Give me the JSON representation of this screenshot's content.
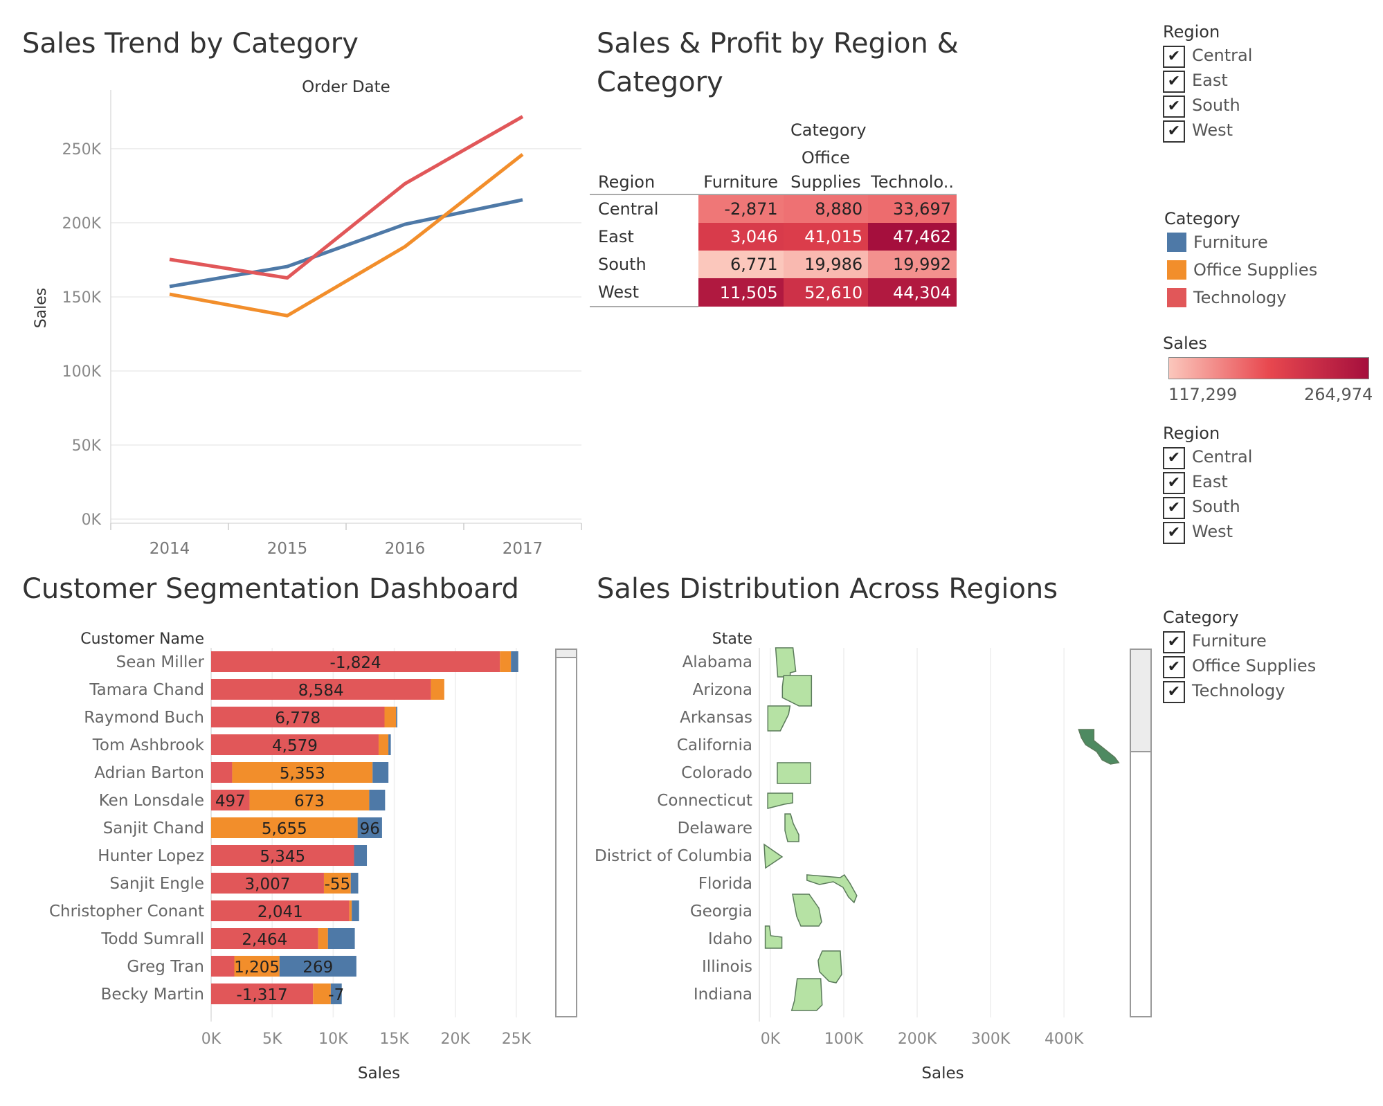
{
  "colors": {
    "furniture": "#4e79a7",
    "office_supplies": "#f28e2b",
    "technology": "#e15759",
    "map_light": "#b6e2a4",
    "map_dark": "#4e8a61",
    "map_stroke": "#5a7a5a"
  },
  "line_panel": {
    "title": "Sales Trend by Category",
    "top_header": "Order Date"
  },
  "heat_panel": {
    "title_line1": "Sales & Profit by Region &",
    "title_line2": "Category",
    "category_header": "Category",
    "row_header": "Region",
    "col_labels": [
      [
        "",
        "Furniture"
      ],
      [
        "Office",
        "Supplies"
      ],
      [
        "",
        "Technolo.."
      ]
    ],
    "rows": [
      "Central",
      "East",
      "South",
      "West"
    ]
  },
  "bar_panel": {
    "title": "Customer Segmentation Dashboard",
    "row_header": "Customer Name"
  },
  "map_panel": {
    "title": "Sales Distribution Across Regions",
    "row_header": "State"
  },
  "filters": {
    "region_1": {
      "title": "Region",
      "items": [
        "Central",
        "East",
        "South",
        "West"
      ]
    },
    "category_legend": {
      "title": "Category",
      "items": [
        "Furniture",
        "Office Supplies",
        "Technology"
      ]
    },
    "sales_legend": {
      "title": "Sales",
      "min": "117,299",
      "max": "264,974",
      "gradient_start": "#fbc7bc",
      "gradient_mid": "#e8484f",
      "gradient_end": "#a50f3d"
    },
    "region_2": {
      "title": "Region",
      "items": [
        "Central",
        "East",
        "South",
        "West"
      ]
    },
    "category_filter": {
      "title": "Category",
      "items": [
        "Furniture",
        "Office Supplies",
        "Technology"
      ]
    },
    "check_glyph": "✔"
  },
  "chart_data": [
    {
      "id": "sales_trend",
      "type": "line",
      "title": "Sales Trend by Category",
      "xlabel": "Order Date",
      "ylabel": "Sales",
      "x": [
        "2014",
        "2015",
        "2016",
        "2017"
      ],
      "y_ticks": [
        "0K",
        "50K",
        "100K",
        "150K",
        "200K",
        "250K"
      ],
      "ylim": [
        0,
        285000
      ],
      "grid": true,
      "series": [
        {
          "name": "Furniture",
          "values": [
            157000,
            170500,
            199000,
            215500
          ]
        },
        {
          "name": "Office Supplies",
          "values": [
            151800,
            137300,
            183900,
            246200
          ]
        },
        {
          "name": "Technology",
          "values": [
            175300,
            162800,
            226400,
            271700
          ]
        }
      ]
    },
    {
      "id": "region_category_heatmap",
      "type": "heatmap",
      "title": "Sales & Profit by Region & Category",
      "rows": [
        "Central",
        "East",
        "South",
        "West"
      ],
      "columns": [
        "Furniture",
        "Office Supplies",
        "Technology"
      ],
      "profit_labels": [
        [
          "-2,871",
          "8,880",
          "33,697"
        ],
        [
          "3,046",
          "41,015",
          "47,462"
        ],
        [
          "6,771",
          "19,986",
          "19,992"
        ],
        [
          "11,505",
          "52,610",
          "44,304"
        ]
      ],
      "sales": [
        [
          163797,
          167026,
          170416
        ],
        [
          208291,
          205516,
          264974
        ],
        [
          117299,
          125651,
          148772
        ],
        [
          252613,
          220853,
          251992
        ]
      ]
    },
    {
      "id": "customer_segmentation",
      "type": "bar",
      "orientation": "horizontal",
      "stacked": true,
      "title": "Customer Segmentation Dashboard",
      "xlabel": "Sales",
      "ylabel": "Customer Name",
      "x_ticks": [
        "0K",
        "5K",
        "10K",
        "15K",
        "20K",
        "25K"
      ],
      "xlim": [
        0,
        27500
      ],
      "categories": [
        "Sean Miller",
        "Tamara Chand",
        "Raymond Buch",
        "Tom Ashbrook",
        "Adrian Barton",
        "Ken Lonsdale",
        "Sanjit Chand",
        "Hunter Lopez",
        "Sanjit Engle",
        "Christopher Conant",
        "Todd Sumrall",
        "Greg Tran",
        "Becky Martin"
      ],
      "series": [
        {
          "name": "Technology",
          "values": [
            23660,
            17999,
            14204,
            13720,
            1725,
            3150,
            0,
            11710,
            9240,
            11320,
            8770,
            1900,
            8350
          ]
        },
        {
          "name": "Office Supplies",
          "values": [
            900,
            1100,
            950,
            800,
            11500,
            9800,
            12000,
            0,
            2200,
            200,
            800,
            3700,
            1450
          ]
        },
        {
          "name": "Furniture",
          "values": [
            600,
            0,
            100,
            200,
            1300,
            1300,
            2000,
            1050,
            610,
            600,
            2200,
            6300,
            900
          ]
        }
      ],
      "data_labels": [
        [
          "-1,824",
          "",
          ""
        ],
        [
          "8,584",
          "",
          ""
        ],
        [
          "6,778",
          "",
          ""
        ],
        [
          "4,579",
          "",
          ""
        ],
        [
          "",
          "5,353",
          ""
        ],
        [
          "497",
          "673",
          ""
        ],
        [
          "",
          "5,655",
          "96"
        ],
        [
          "5,345",
          "",
          ""
        ],
        [
          "3,007",
          "-55",
          ""
        ],
        [
          "2,041",
          "",
          ""
        ],
        [
          "2,464",
          "",
          ""
        ],
        [
          "",
          "1,205",
          "269"
        ],
        [
          "-1,317",
          "",
          "-7"
        ]
      ]
    },
    {
      "id": "sales_by_state",
      "type": "scatter",
      "title": "Sales Distribution Across Regions",
      "xlabel": "Sales",
      "ylabel": "State",
      "x_ticks": [
        "0K",
        "100K",
        "200K",
        "300K",
        "400K"
      ],
      "xlim": [
        -15000,
        480000
      ],
      "categories": [
        "Alabama",
        "Arizona",
        "Arkansas",
        "California",
        "Colorado",
        "Connecticut",
        "Delaware",
        "District of Columbia",
        "Florida",
        "Georgia",
        "Idaho",
        "Illinois",
        "Indiana"
      ],
      "values": [
        19511,
        35282,
        11678,
        457688,
        32108,
        13384,
        27451,
        2865,
        89474,
        49096,
        4382,
        80166,
        53555
      ],
      "shapes": [
        "alabama",
        "arizona",
        "arkansas",
        "california",
        "colorado",
        "connecticut",
        "delaware",
        "dc",
        "florida",
        "georgia",
        "idaho",
        "illinois",
        "indiana"
      ]
    }
  ]
}
